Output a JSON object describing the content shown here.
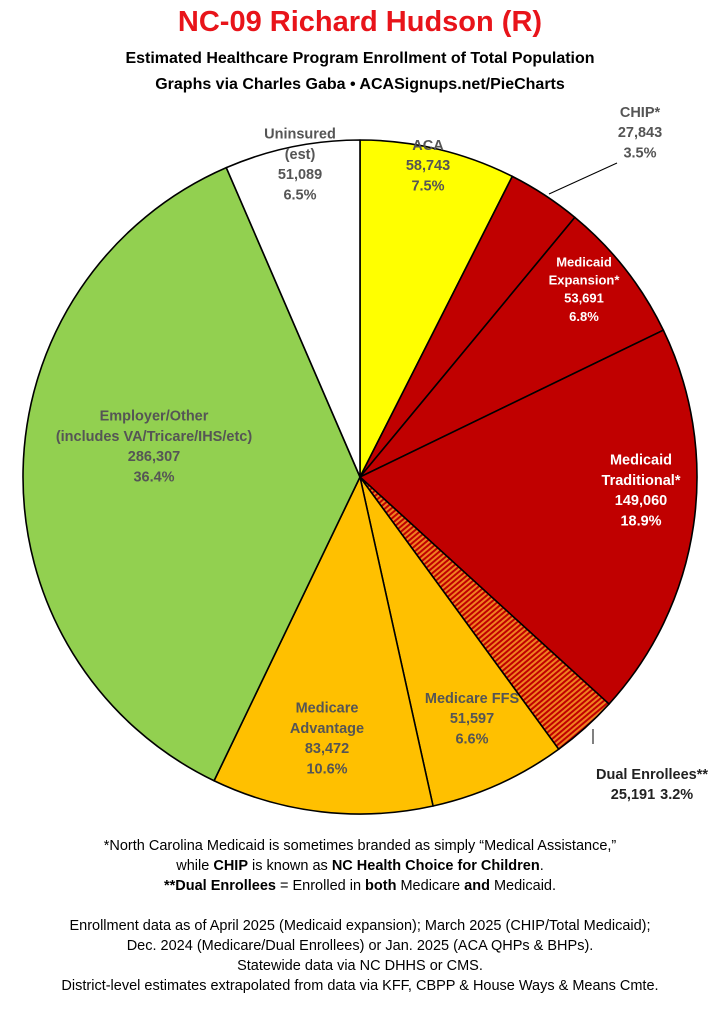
{
  "header": {
    "title": "NC-09 Richard Hudson (R)",
    "subtitle": "Estimated Healthcare Program Enrollment of Total Population",
    "credit": "Graphs via Charles Gaba  •  ACASignups.net/PieCharts"
  },
  "chart_data": {
    "type": "pie",
    "title": "NC-09 Richard Hudson (R)",
    "subtitle": "Estimated Healthcare Program Enrollment of Total Population",
    "start": "12 o'clock",
    "direction": "clockwise",
    "slices": [
      {
        "key": "aca",
        "label_lines": [
          "ACA"
        ],
        "value": 58743,
        "value_text": "58,743",
        "percent": 7.5,
        "percent_text": "7.5%",
        "color": "#ffff00",
        "label_color": "#555555"
      },
      {
        "key": "chip",
        "label_lines": [
          "CHIP*"
        ],
        "value": 27843,
        "value_text": "27,843",
        "percent": 3.5,
        "percent_text": "3.5%",
        "color": "#c00000",
        "label_color": "#555555"
      },
      {
        "key": "medicaid_expansion",
        "label_lines": [
          "Medicaid",
          "Expansion*"
        ],
        "value": 53691,
        "value_text": "53,691",
        "percent": 6.8,
        "percent_text": "6.8%",
        "color": "#c00000",
        "label_color": "#ffffff"
      },
      {
        "key": "medicaid_traditional",
        "label_lines": [
          "Medicaid",
          "Traditional*"
        ],
        "value": 149060,
        "value_text": "149,060",
        "percent": 18.9,
        "percent_text": "18.9%",
        "color": "#c00000",
        "label_color": "#ffffff"
      },
      {
        "key": "dual_enrollees",
        "label_lines": [
          "Dual Enrollees**"
        ],
        "value": 25191,
        "value_text": "25,191",
        "percent": 3.2,
        "percent_text": "3.2%",
        "color": "#c00000",
        "pattern": "red-orange stripes",
        "label_color": "#222222"
      },
      {
        "key": "medicare_ffs",
        "label_lines": [
          "Medicare FFS"
        ],
        "value": 51597,
        "value_text": "51,597",
        "percent": 6.6,
        "percent_text": "6.6%",
        "color": "#ffc000",
        "label_color": "#555555"
      },
      {
        "key": "medicare_advantage",
        "label_lines": [
          "Medicare",
          "Advantage"
        ],
        "value": 83472,
        "value_text": "83,472",
        "percent": 10.6,
        "percent_text": "10.6%",
        "color": "#ffc000",
        "label_color": "#555555"
      },
      {
        "key": "employer_other",
        "label_lines": [
          "Employer/Other",
          "(includes VA/Tricare/IHS/etc)"
        ],
        "value": 286307,
        "value_text": "286,307",
        "percent": 36.4,
        "percent_text": "36.4%",
        "color": "#92d050",
        "label_color": "#555555"
      },
      {
        "key": "uninsured",
        "label_lines": [
          "Uninsured",
          "(est)"
        ],
        "value": 51089,
        "value_text": "51,089",
        "percent": 6.5,
        "percent_text": "6.5%",
        "color": "#ffffff",
        "label_color": "#555555"
      }
    ]
  },
  "footer": {
    "note1": "*North Carolina Medicaid is sometimes branded as simply “Medical Assistance,”",
    "note2_a": "while ",
    "note2_b": "CHIP",
    "note2_c": " is known as ",
    "note2_d": "NC Health Choice for Children",
    "note2_e": ".",
    "note3_a": "**Dual Enrollees",
    "note3_b": " = Enrolled in ",
    "note3_c": "both",
    "note3_d": " Medicare ",
    "note3_e": "and",
    "note3_f": " Medicaid.",
    "source1": "Enrollment data as of April 2025 (Medicaid expansion); March 2025 (CHIP/Total Medicaid);",
    "source2": "Dec. 2024 (Medicare/Dual Enrollees) or Jan. 2025 (ACA QHPs & BHPs).",
    "source3": "Statewide data via NC DHHS or CMS.",
    "source4": "District-level estimates extrapolated from data via KFF, CBPP & House Ways & Means Cmte."
  }
}
